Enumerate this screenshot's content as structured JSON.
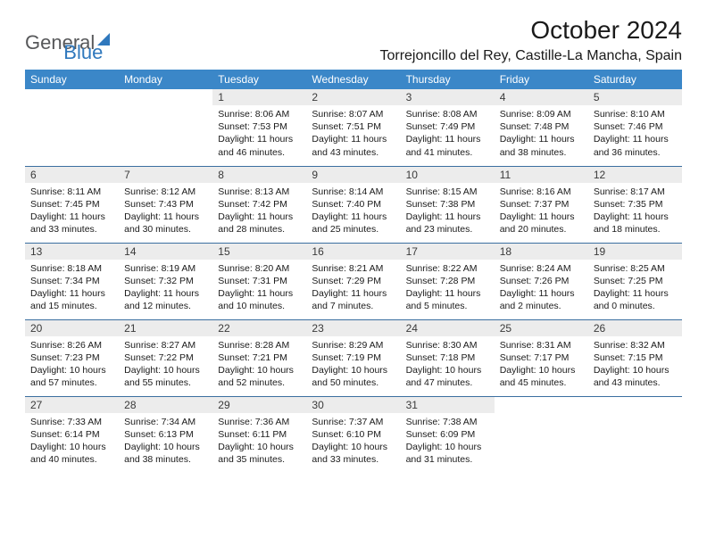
{
  "brand": {
    "part1": "General",
    "part2": "Blue"
  },
  "title": "October 2024",
  "location": "Torrejoncillo del Rey, Castille-La Mancha, Spain",
  "colors": {
    "header_bg": "#3b87c8",
    "header_text": "#ffffff",
    "daynum_bg": "#ececec",
    "row_divider": "#3b6fa0",
    "logo_gray": "#57585a",
    "logo_blue": "#2f78bd",
    "page_bg": "#ffffff",
    "body_text": "#1a1a1a"
  },
  "fonts": {
    "title_size_pt": 28,
    "location_size_pt": 16,
    "weekday_size_pt": 12,
    "daynum_size_pt": 12,
    "body_size_pt": 10.5
  },
  "weekdays": [
    "Sunday",
    "Monday",
    "Tuesday",
    "Wednesday",
    "Thursday",
    "Friday",
    "Saturday"
  ],
  "weeks": [
    [
      {
        "empty": true
      },
      {
        "empty": true
      },
      {
        "n": "1",
        "sr": "8:06 AM",
        "ss": "7:53 PM",
        "dl": "11 hours and 46 minutes."
      },
      {
        "n": "2",
        "sr": "8:07 AM",
        "ss": "7:51 PM",
        "dl": "11 hours and 43 minutes."
      },
      {
        "n": "3",
        "sr": "8:08 AM",
        "ss": "7:49 PM",
        "dl": "11 hours and 41 minutes."
      },
      {
        "n": "4",
        "sr": "8:09 AM",
        "ss": "7:48 PM",
        "dl": "11 hours and 38 minutes."
      },
      {
        "n": "5",
        "sr": "8:10 AM",
        "ss": "7:46 PM",
        "dl": "11 hours and 36 minutes."
      }
    ],
    [
      {
        "n": "6",
        "sr": "8:11 AM",
        "ss": "7:45 PM",
        "dl": "11 hours and 33 minutes."
      },
      {
        "n": "7",
        "sr": "8:12 AM",
        "ss": "7:43 PM",
        "dl": "11 hours and 30 minutes."
      },
      {
        "n": "8",
        "sr": "8:13 AM",
        "ss": "7:42 PM",
        "dl": "11 hours and 28 minutes."
      },
      {
        "n": "9",
        "sr": "8:14 AM",
        "ss": "7:40 PM",
        "dl": "11 hours and 25 minutes."
      },
      {
        "n": "10",
        "sr": "8:15 AM",
        "ss": "7:38 PM",
        "dl": "11 hours and 23 minutes."
      },
      {
        "n": "11",
        "sr": "8:16 AM",
        "ss": "7:37 PM",
        "dl": "11 hours and 20 minutes."
      },
      {
        "n": "12",
        "sr": "8:17 AM",
        "ss": "7:35 PM",
        "dl": "11 hours and 18 minutes."
      }
    ],
    [
      {
        "n": "13",
        "sr": "8:18 AM",
        "ss": "7:34 PM",
        "dl": "11 hours and 15 minutes."
      },
      {
        "n": "14",
        "sr": "8:19 AM",
        "ss": "7:32 PM",
        "dl": "11 hours and 12 minutes."
      },
      {
        "n": "15",
        "sr": "8:20 AM",
        "ss": "7:31 PM",
        "dl": "11 hours and 10 minutes."
      },
      {
        "n": "16",
        "sr": "8:21 AM",
        "ss": "7:29 PM",
        "dl": "11 hours and 7 minutes."
      },
      {
        "n": "17",
        "sr": "8:22 AM",
        "ss": "7:28 PM",
        "dl": "11 hours and 5 minutes."
      },
      {
        "n": "18",
        "sr": "8:24 AM",
        "ss": "7:26 PM",
        "dl": "11 hours and 2 minutes."
      },
      {
        "n": "19",
        "sr": "8:25 AM",
        "ss": "7:25 PM",
        "dl": "11 hours and 0 minutes."
      }
    ],
    [
      {
        "n": "20",
        "sr": "8:26 AM",
        "ss": "7:23 PM",
        "dl": "10 hours and 57 minutes."
      },
      {
        "n": "21",
        "sr": "8:27 AM",
        "ss": "7:22 PM",
        "dl": "10 hours and 55 minutes."
      },
      {
        "n": "22",
        "sr": "8:28 AM",
        "ss": "7:21 PM",
        "dl": "10 hours and 52 minutes."
      },
      {
        "n": "23",
        "sr": "8:29 AM",
        "ss": "7:19 PM",
        "dl": "10 hours and 50 minutes."
      },
      {
        "n": "24",
        "sr": "8:30 AM",
        "ss": "7:18 PM",
        "dl": "10 hours and 47 minutes."
      },
      {
        "n": "25",
        "sr": "8:31 AM",
        "ss": "7:17 PM",
        "dl": "10 hours and 45 minutes."
      },
      {
        "n": "26",
        "sr": "8:32 AM",
        "ss": "7:15 PM",
        "dl": "10 hours and 43 minutes."
      }
    ],
    [
      {
        "n": "27",
        "sr": "7:33 AM",
        "ss": "6:14 PM",
        "dl": "10 hours and 40 minutes."
      },
      {
        "n": "28",
        "sr": "7:34 AM",
        "ss": "6:13 PM",
        "dl": "10 hours and 38 minutes."
      },
      {
        "n": "29",
        "sr": "7:36 AM",
        "ss": "6:11 PM",
        "dl": "10 hours and 35 minutes."
      },
      {
        "n": "30",
        "sr": "7:37 AM",
        "ss": "6:10 PM",
        "dl": "10 hours and 33 minutes."
      },
      {
        "n": "31",
        "sr": "7:38 AM",
        "ss": "6:09 PM",
        "dl": "10 hours and 31 minutes."
      },
      {
        "empty": true
      },
      {
        "empty": true
      }
    ]
  ],
  "labels": {
    "sunrise": "Sunrise:",
    "sunset": "Sunset:",
    "daylight": "Daylight:"
  }
}
